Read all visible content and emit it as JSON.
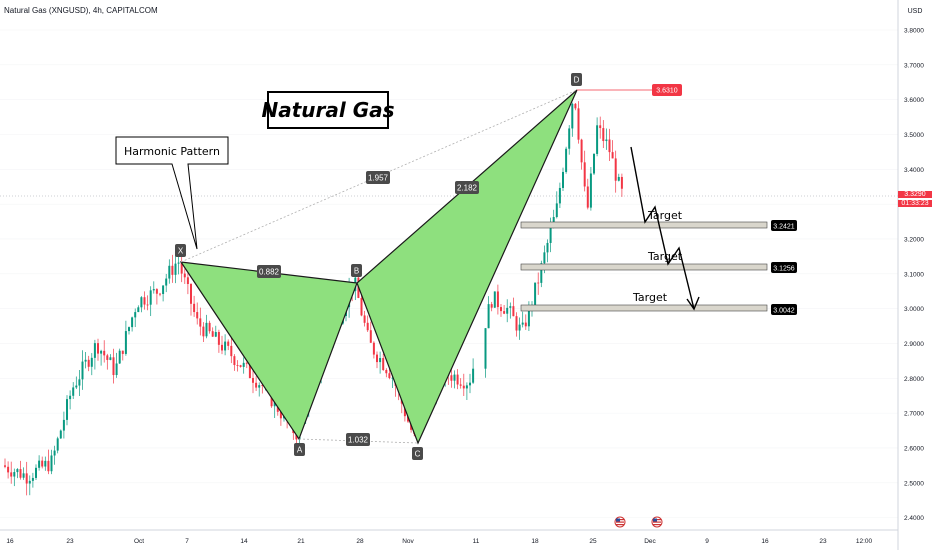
{
  "header": {
    "symbol_info": "Natural Gas (XNGUSD), 4h, CAPITALCOM",
    "currency": "USD"
  },
  "annotations": {
    "title": "Natural Gas",
    "callout": "Harmonic Pattern",
    "targets": [
      "Target",
      "Target",
      "Target"
    ]
  },
  "current_price": {
    "value": "3.3290",
    "countdown": "01:33:23"
  },
  "colors": {
    "pattern_fill": "#8ee07e",
    "up": "#089981",
    "down": "#f23645",
    "zone": "#d9d6cc"
  },
  "chart_data": {
    "type": "candlestick",
    "y_axis": {
      "min": 2.4,
      "max": 3.8,
      "ticks": [
        "2.4000",
        "2.5000",
        "2.6000",
        "2.7000",
        "2.8000",
        "2.9000",
        "3.0000",
        "3.1000",
        "3.2000",
        "3.3000",
        "3.4000",
        "3.5000",
        "3.6000",
        "3.7000",
        "3.8000"
      ]
    },
    "x_axis": {
      "ticks": [
        "16",
        "23",
        "Oct",
        "7",
        "14",
        "21",
        "28",
        "Nov",
        "11",
        "18",
        "25",
        "Dec",
        "9",
        "16",
        "23",
        "12:00"
      ]
    },
    "pattern_points": [
      {
        "label": "X",
        "price": 3.14
      },
      {
        "label": "A",
        "price": 2.64
      },
      {
        "label": "B",
        "price": 3.08
      },
      {
        "label": "C",
        "price": 2.62
      },
      {
        "label": "D",
        "price": 3.631
      }
    ],
    "ratios": [
      "0.882",
      "1.032",
      "1.957",
      "2.182"
    ],
    "price_tags": {
      "d_high": "3.6310",
      "targets": [
        "3.2421",
        "3.1256",
        "3.0042"
      ]
    },
    "target_prices": [
      3.2421,
      3.1256,
      3.0042
    ]
  }
}
